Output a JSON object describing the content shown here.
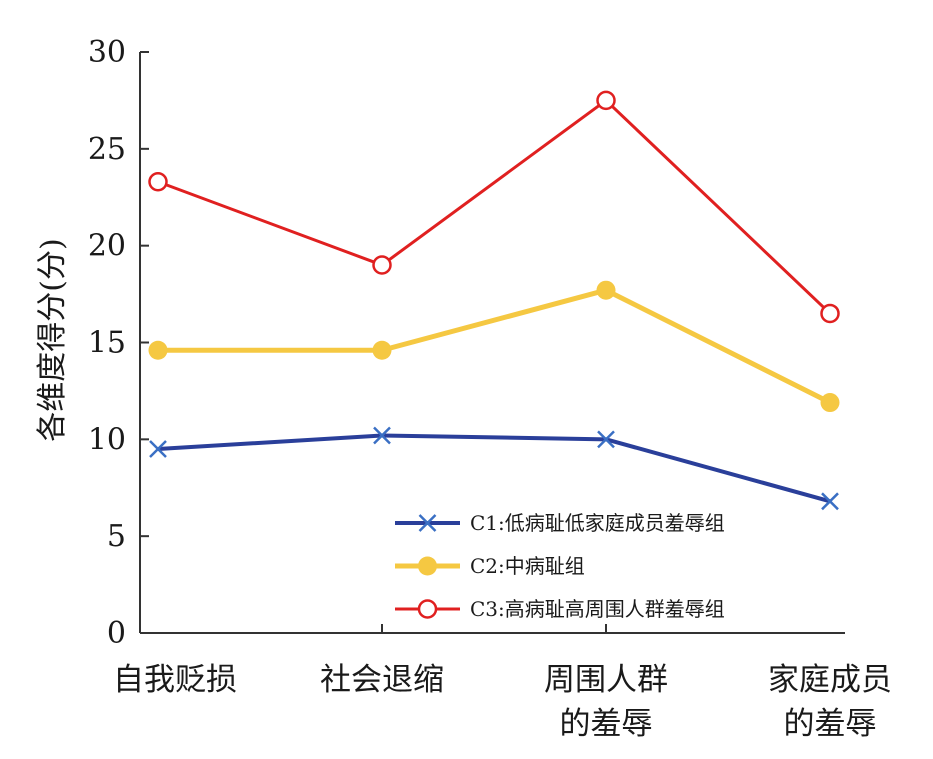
{
  "chart_data": {
    "type": "line",
    "title": "",
    "xlabel": "",
    "ylabel": "各维度得分(分)",
    "ylim": [
      0,
      30
    ],
    "yticks": [
      0,
      5,
      10,
      15,
      20,
      25,
      30
    ],
    "grid": false,
    "legend_position": "bottom-right",
    "categories": [
      [
        "自我贬损"
      ],
      [
        "社会退缩"
      ],
      [
        "周围人群",
        "的羞辱"
      ],
      [
        "家庭成员",
        "的羞辱"
      ]
    ],
    "series": [
      {
        "name": "C1:低病耻低家庭成员羞辱组",
        "color": "#2a3f9a",
        "marker": "x",
        "values": [
          9.5,
          10.2,
          10.0,
          6.8
        ]
      },
      {
        "name": "C2:中病耻组",
        "color": "#f5c842",
        "marker": "filled-circle",
        "values": [
          14.6,
          14.6,
          17.7,
          11.9
        ]
      },
      {
        "name": "C3:高病耻高周围人群羞辱组",
        "color": "#e02020",
        "marker": "open-circle",
        "values": [
          23.3,
          19.0,
          27.5,
          16.5
        ]
      }
    ]
  }
}
